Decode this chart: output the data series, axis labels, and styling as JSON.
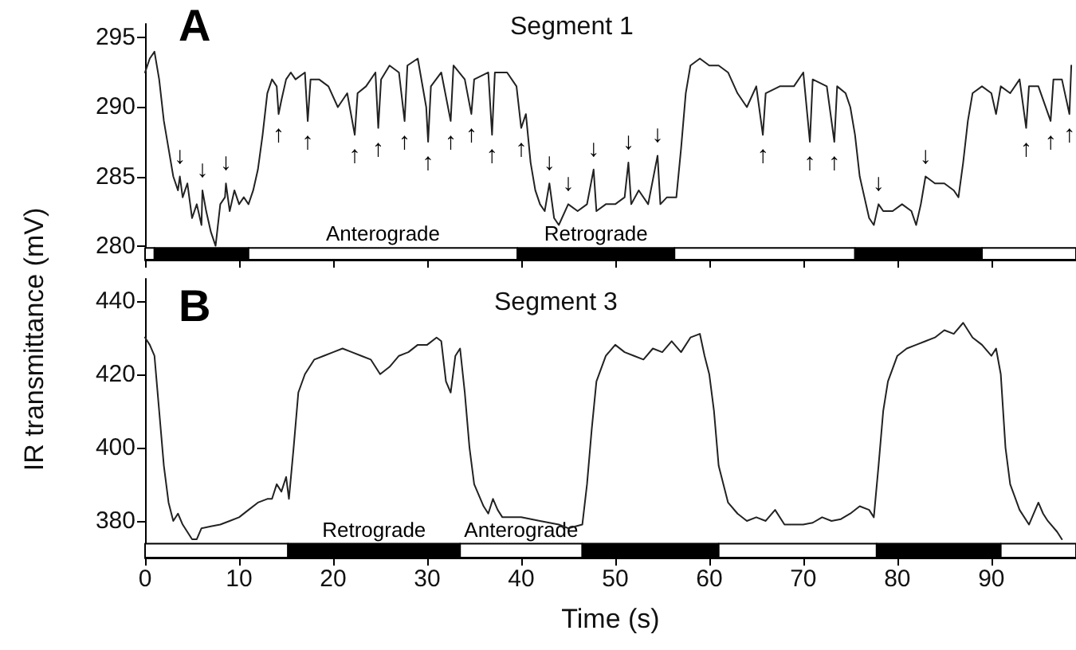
{
  "chart_data": [
    {
      "type": "line",
      "title": "Segment 1",
      "ylabel": "IR transmittance (mV)",
      "xlim": [
        0,
        99
      ],
      "xticks": [
        0,
        10,
        20,
        30,
        40,
        50,
        60,
        70,
        80,
        90
      ],
      "ylim": [
        279,
        296
      ],
      "yticks": [
        280,
        285,
        290,
        295
      ],
      "tick_labels": "y",
      "marker": "none",
      "line_style": "solid",
      "series": [
        {
          "color": "#222222",
          "x": [
            0,
            0.5,
            1,
            1.5,
            2,
            2.5,
            3,
            3.5,
            3.7,
            4,
            4.5,
            5,
            5.5,
            6,
            6.1,
            6.5,
            7,
            7.5,
            8,
            8.5,
            8.6,
            9,
            9.5,
            10,
            10.5,
            11,
            11.5,
            12,
            12.5,
            13,
            13.5,
            14,
            14.2,
            14.5,
            15,
            15.5,
            16,
            17,
            17.3,
            17.6,
            18.5,
            19.5,
            20.5,
            21.5,
            22.3,
            22.6,
            23.5,
            24.5,
            24.8,
            25.1,
            26,
            27,
            27.6,
            27.9,
            29,
            29.9,
            30.1,
            30.4,
            31.5,
            32.5,
            32.8,
            34,
            34.7,
            35,
            36.5,
            36.9,
            37.2,
            38.5,
            39.5,
            40,
            40.5,
            41,
            41.5,
            42,
            42.5,
            43,
            43.5,
            44,
            45,
            46,
            47,
            47.7,
            48,
            49,
            50,
            51,
            51.4,
            51.7,
            52.5,
            53.5,
            54.5,
            54.8,
            55.5,
            56.5,
            57,
            57.5,
            58,
            59,
            60,
            61,
            62,
            63,
            64,
            65,
            65.7,
            66,
            67.5,
            69,
            70,
            70.7,
            71,
            72.5,
            73.3,
            73.6,
            74.5,
            75,
            75.5,
            76,
            76.5,
            77,
            77.5,
            78,
            78.5,
            79.5,
            80.5,
            81.5,
            82,
            82.5,
            83,
            84,
            85,
            86,
            86.5,
            87,
            87.5,
            88,
            89,
            90,
            90.5,
            91,
            92,
            93,
            93.7,
            94,
            95,
            96.3,
            96.6,
            97.5,
            98.3,
            98.5
          ],
          "values": [
            292.5,
            293.5,
            294,
            292,
            289,
            287,
            285,
            284,
            285,
            283.5,
            284.5,
            282,
            283,
            281.5,
            284,
            282.5,
            281,
            280,
            283,
            283.5,
            284.5,
            282.5,
            284,
            283,
            283.5,
            283,
            284,
            285.5,
            288,
            291,
            292,
            291.5,
            289.5,
            290.5,
            292,
            292.5,
            292,
            292.5,
            289,
            292,
            292,
            291.5,
            290,
            291,
            288,
            291,
            291.5,
            292.5,
            288.5,
            292,
            293,
            292.5,
            289,
            293,
            293.5,
            290,
            287.5,
            291.5,
            292.5,
            289,
            293,
            292,
            289.5,
            292,
            292.5,
            288,
            292.5,
            292.5,
            291.5,
            288.5,
            289.5,
            286,
            284,
            283,
            282.5,
            284.5,
            282,
            281.5,
            283,
            282.5,
            283,
            285.5,
            282.5,
            283,
            283,
            283.5,
            286,
            283,
            284,
            283,
            286.5,
            283,
            283.5,
            283.5,
            287,
            291,
            293,
            293.5,
            293,
            293,
            292.5,
            291,
            290,
            291.5,
            288,
            291,
            291.5,
            291.5,
            292.5,
            287.5,
            292,
            291.5,
            287.5,
            291.5,
            291,
            290,
            288,
            285,
            283.5,
            282,
            281.5,
            283,
            282.5,
            282.5,
            283,
            282.5,
            281.5,
            283,
            285,
            284.5,
            284.5,
            284,
            283.5,
            286,
            289,
            291,
            291.5,
            291,
            289.5,
            291.5,
            291,
            292,
            288.5,
            291.5,
            291.5,
            289,
            292,
            292,
            289.5,
            293
          ]
        }
      ],
      "bands": [
        {
          "axis": "x",
          "from": 0,
          "to": 1,
          "color": "#ffffff"
        },
        {
          "axis": "x",
          "from": 1,
          "to": 11,
          "color": "#000000"
        },
        {
          "axis": "x",
          "from": 11,
          "to": 39.6,
          "color": "#ffffff",
          "label": "Anterograde"
        },
        {
          "axis": "x",
          "from": 39.6,
          "to": 56.3,
          "color": "#000000",
          "label": "Retrograde"
        },
        {
          "axis": "x",
          "from": 56.3,
          "to": 75.5,
          "color": "#ffffff"
        },
        {
          "axis": "x",
          "from": 75.5,
          "to": 89,
          "color": "#000000"
        },
        {
          "axis": "x",
          "from": 89,
          "to": 99,
          "color": "#ffffff"
        }
      ],
      "annotations": [
        "A",
        {
          "text": "↓",
          "x": 3.7,
          "y": 285
        },
        {
          "text": "↓",
          "x": 6.1,
          "y": 284
        },
        {
          "text": "↓",
          "x": 8.6,
          "y": 284.5
        },
        {
          "text": "↑",
          "x": 14.2,
          "y": 289.5
        },
        {
          "text": "↑",
          "x": 17.3,
          "y": 289
        },
        {
          "text": "↑",
          "x": 22.3,
          "y": 288
        },
        {
          "text": "↑",
          "x": 24.8,
          "y": 288.5
        },
        {
          "text": "↑",
          "x": 27.6,
          "y": 289
        },
        {
          "text": "↑",
          "x": 30.1,
          "y": 287.5
        },
        {
          "text": "↑",
          "x": 32.5,
          "y": 289
        },
        {
          "text": "↑",
          "x": 34.7,
          "y": 289.5
        },
        {
          "text": "↑",
          "x": 36.9,
          "y": 288
        },
        {
          "text": "↑",
          "x": 40,
          "y": 288.5
        },
        {
          "text": "↓",
          "x": 43,
          "y": 284.5
        },
        {
          "text": "↓",
          "x": 45,
          "y": 283
        },
        {
          "text": "↓",
          "x": 47.7,
          "y": 285.5
        },
        {
          "text": "↓",
          "x": 51.4,
          "y": 286
        },
        {
          "text": "↓",
          "x": 54.5,
          "y": 286.5
        },
        {
          "text": "↑",
          "x": 65.7,
          "y": 288
        },
        {
          "text": "↑",
          "x": 70.7,
          "y": 287.5
        },
        {
          "text": "↑",
          "x": 73.3,
          "y": 287.5
        },
        {
          "text": "↓",
          "x": 78,
          "y": 283
        },
        {
          "text": "↓",
          "x": 83,
          "y": 285
        },
        {
          "text": "↑",
          "x": 93.7,
          "y": 288.5
        },
        {
          "text": "↑",
          "x": 96.3,
          "y": 289
        },
        {
          "text": "↑",
          "x": 98.3,
          "y": 289.5
        }
      ]
    },
    {
      "type": "line",
      "title": "Segment 3",
      "xlabel": "Time (s)",
      "xlim": [
        0,
        99
      ],
      "xticks": [
        0,
        10,
        20,
        30,
        40,
        50,
        60,
        70,
        80,
        90
      ],
      "ylim": [
        370,
        446
      ],
      "yticks": [
        380,
        400,
        420,
        440
      ],
      "marker": "none",
      "line_style": "solid",
      "series": [
        {
          "color": "#222222",
          "x": [
            0,
            0.5,
            1,
            1.5,
            2,
            2.5,
            3,
            3.5,
            4,
            5,
            5.5,
            6,
            7,
            8,
            9,
            10,
            11,
            12,
            13,
            13.5,
            14,
            14.5,
            15,
            15.3,
            15.8,
            16.3,
            17,
            18,
            19,
            20,
            21,
            22,
            23,
            24,
            25,
            26,
            27,
            28,
            29,
            30,
            31,
            31.5,
            32,
            32.5,
            33,
            33.5,
            34,
            34.5,
            35,
            36,
            36.5,
            37,
            37.5,
            38,
            40,
            42,
            44,
            45,
            46.5,
            47,
            47.5,
            48,
            49,
            50,
            51,
            52,
            53,
            54,
            55,
            56,
            57,
            58,
            59,
            59.5,
            60,
            60.5,
            61,
            62,
            63,
            64,
            65,
            66,
            67,
            68,
            69,
            70,
            71,
            72,
            73,
            74,
            75,
            76,
            77,
            77.5,
            78,
            78.5,
            79,
            80,
            81,
            82,
            83,
            84,
            85,
            86,
            87,
            88,
            89,
            90,
            90.5,
            91,
            91.5,
            92,
            93,
            94,
            95,
            95.5,
            96,
            97,
            97.5
          ],
          "values": [
            430,
            428,
            425,
            410,
            395,
            385,
            380,
            382,
            379,
            375,
            375,
            378,
            378.5,
            379,
            380,
            381,
            383,
            385,
            386,
            386,
            390,
            388,
            392,
            386,
            400,
            415,
            420,
            424,
            425,
            426,
            427,
            426,
            425,
            424,
            420,
            422,
            425,
            426,
            428,
            428,
            430,
            429,
            418,
            415,
            425,
            427,
            415,
            400,
            390,
            384,
            382,
            386,
            383,
            381,
            381,
            380,
            379,
            378,
            379,
            390,
            405,
            418,
            425,
            428,
            426,
            425,
            424,
            427,
            426,
            429,
            426,
            430,
            431,
            425,
            420,
            410,
            395,
            385,
            382,
            380,
            381,
            380,
            383,
            379,
            379,
            379,
            379.5,
            381,
            380,
            380.5,
            382,
            384,
            383,
            381,
            395,
            410,
            418,
            425,
            427,
            428,
            429,
            430,
            432,
            431,
            434,
            430,
            428,
            425,
            427,
            420,
            400,
            390,
            383,
            379,
            385,
            382,
            380,
            377,
            375
          ]
        }
      ],
      "bands": [
        {
          "axis": "x",
          "from": 0,
          "to": 15.2,
          "color": "#ffffff"
        },
        {
          "axis": "x",
          "from": 15.2,
          "to": 33.5,
          "color": "#000000",
          "label": "Retrograde"
        },
        {
          "axis": "x",
          "from": 33.5,
          "to": 46.5,
          "color": "#ffffff",
          "label": "Anterograde"
        },
        {
          "axis": "x",
          "from": 46.5,
          "to": 61,
          "color": "#000000"
        },
        {
          "axis": "x",
          "from": 61,
          "to": 77.8,
          "color": "#ffffff"
        },
        {
          "axis": "x",
          "from": 77.8,
          "to": 91,
          "color": "#000000"
        },
        {
          "axis": "x",
          "from": 91,
          "to": 99,
          "color": "#ffffff"
        }
      ],
      "annotations": [
        "B"
      ]
    }
  ]
}
